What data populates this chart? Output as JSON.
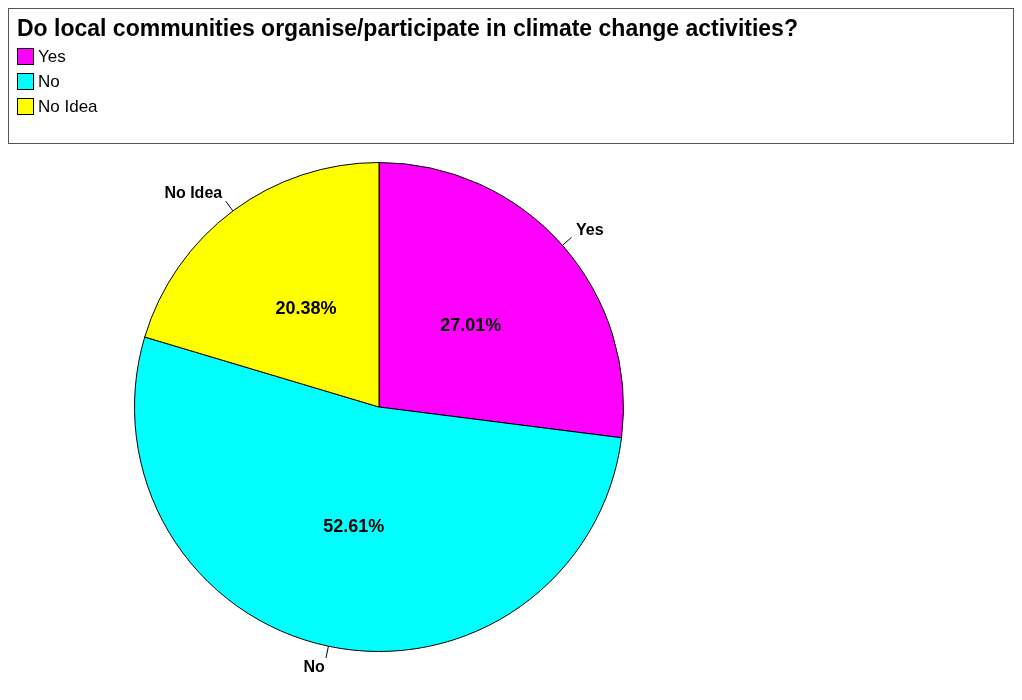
{
  "chart_data": {
    "type": "pie",
    "title": "Do local communities organise/participate in climate change activities?",
    "categories": [
      "Yes",
      "No",
      "No Idea"
    ],
    "values": [
      27.01,
      52.61,
      20.38
    ],
    "value_labels": [
      "27.01%",
      "52.61%",
      "20.38%"
    ],
    "colors": [
      "#ff00ff",
      "#00ffff",
      "#ffff00"
    ],
    "legend": "top left"
  }
}
